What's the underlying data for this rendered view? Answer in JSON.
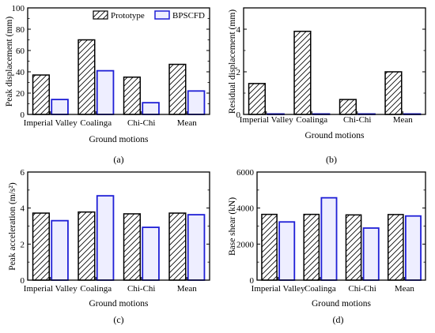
{
  "legend": {
    "series": [
      "Prototype",
      "BPSCFD"
    ]
  },
  "colors": {
    "prototype_stroke": "#000000",
    "bpscfd_stroke": "#1f1fd6",
    "bpscfd_fill": "#eeeeff"
  },
  "chart_data": [
    {
      "type": "bar",
      "panel_label": "(a)",
      "categories": [
        "Imperial Valley",
        "Coalinga",
        "Chi-Chi",
        "Mean"
      ],
      "series": [
        {
          "name": "Prototype",
          "values": [
            37,
            70,
            35,
            47
          ]
        },
        {
          "name": "BPSCFD",
          "values": [
            14,
            41,
            11,
            22
          ]
        }
      ],
      "xlabel": "Ground motions",
      "ylabel": "Peak displacement (mm)",
      "ylim": [
        0,
        100
      ],
      "yticks": [
        0,
        20,
        40,
        60,
        80,
        100
      ],
      "legend": "top-right"
    },
    {
      "type": "bar",
      "panel_label": "(b)",
      "categories": [
        "Imperial Valley",
        "Coalinga",
        "Chi-Chi",
        "Mean"
      ],
      "series": [
        {
          "name": "Prototype",
          "values": [
            1.45,
            3.9,
            0.7,
            2.0
          ]
        },
        {
          "name": "BPSCFD",
          "values": [
            0.02,
            0.02,
            0.02,
            0.02
          ]
        }
      ],
      "xlabel": "Ground motions",
      "ylabel": "Residual displacement (mm)",
      "ylim": [
        0,
        5
      ],
      "yticks": [
        0,
        2,
        4
      ]
    },
    {
      "type": "bar",
      "panel_label": "(c)",
      "categories": [
        "Imperial Valley",
        "Coalinga",
        "Chi-Chi",
        "Mean"
      ],
      "series": [
        {
          "name": "Prototype",
          "values": [
            3.72,
            3.78,
            3.68,
            3.72
          ]
        },
        {
          "name": "BPSCFD",
          "values": [
            3.3,
            4.68,
            2.93,
            3.63
          ]
        }
      ],
      "xlabel": "Ground motions",
      "ylabel": "Peak acceleration (m/s²)",
      "ylim": [
        0,
        6
      ],
      "yticks": [
        0,
        2,
        4,
        6
      ]
    },
    {
      "type": "bar",
      "panel_label": "(d)",
      "categories": [
        "Imperial Valley",
        "Coalinga",
        "Chi-Chi",
        "Mean"
      ],
      "series": [
        {
          "name": "Prototype",
          "values": [
            3650,
            3650,
            3620,
            3640
          ]
        },
        {
          "name": "BPSCFD",
          "values": [
            3230,
            4570,
            2890,
            3560
          ]
        }
      ],
      "xlabel": "Ground motions",
      "ylabel": "Base shear (kN)",
      "ylim": [
        0,
        6000
      ],
      "yticks": [
        0,
        2000,
        4000,
        6000
      ]
    }
  ]
}
